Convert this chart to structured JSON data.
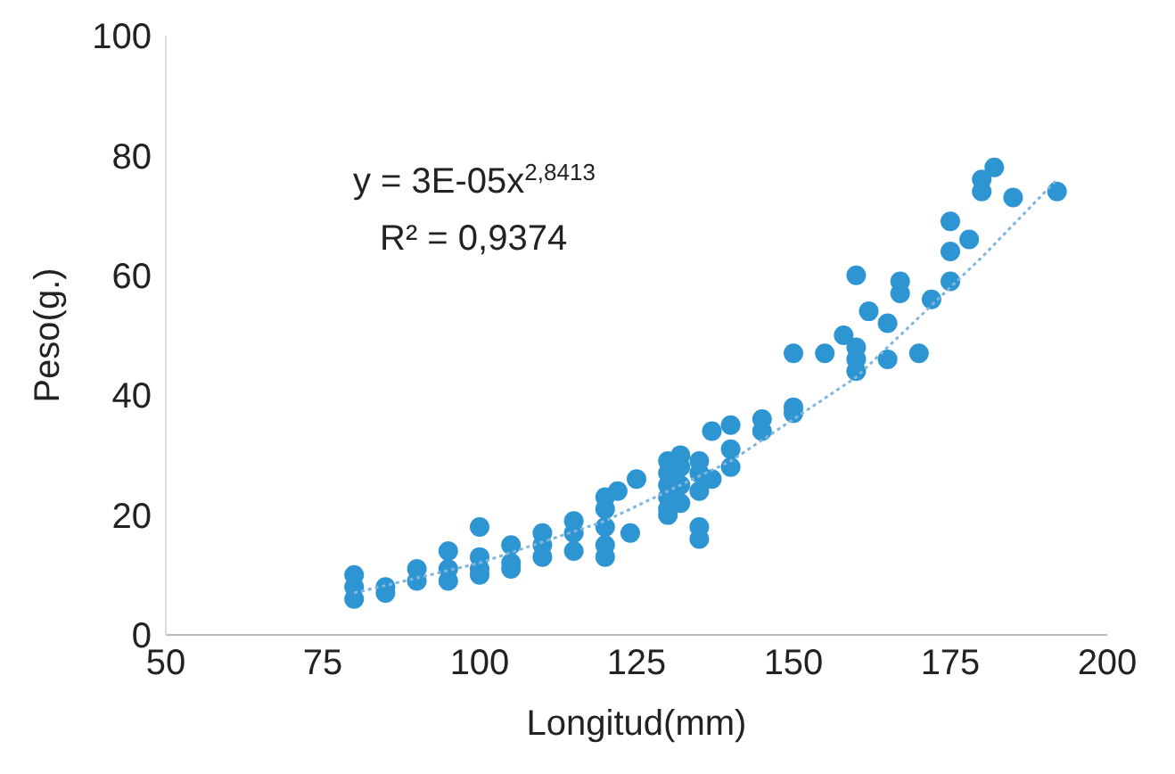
{
  "chart_data": {
    "type": "scatter",
    "xlabel": "Longitud(mm)",
    "ylabel": "Peso(g.)",
    "annotations": [
      "y = 3E-05x$^{2,8413}$",
      "R² = 0,9374"
    ],
    "xlim": [
      50,
      200
    ],
    "xticks": [
      50,
      75,
      100,
      125,
      150,
      175,
      200
    ],
    "ylim": [
      0,
      100
    ],
    "yticks": [
      0,
      20,
      40,
      60,
      80,
      100
    ],
    "grid": false,
    "legend": false,
    "marker": "circle",
    "series": [
      {
        "type": "scatter",
        "color": "#2e95d3",
        "x": [
          80,
          80,
          80,
          85,
          85,
          90,
          90,
          95,
          95,
          95,
          100,
          100,
          100,
          100,
          105,
          105,
          105,
          110,
          110,
          110,
          115,
          115,
          115,
          120,
          120,
          120,
          120,
          120,
          122,
          124,
          125,
          130,
          130,
          130,
          130,
          130,
          130,
          132,
          132,
          132,
          132,
          135,
          135,
          135,
          135,
          135,
          137,
          137,
          140,
          140,
          140,
          145,
          145,
          150,
          150,
          150,
          155,
          158,
          160,
          160,
          160,
          160,
          162,
          165,
          165,
          167,
          167,
          170,
          172,
          175,
          175,
          175,
          178,
          180,
          180,
          182,
          185,
          192
        ],
        "values": [
          10,
          8,
          6,
          8,
          7,
          11,
          9,
          14,
          11,
          9,
          18,
          13,
          11,
          10,
          15,
          12,
          11,
          17,
          15,
          13,
          19,
          17,
          14,
          23,
          21,
          18,
          15,
          13,
          24,
          17,
          26,
          29,
          27,
          25,
          23,
          21,
          20,
          30,
          28,
          25,
          22,
          29,
          27,
          24,
          18,
          16,
          34,
          26,
          35,
          31,
          28,
          36,
          34,
          38,
          37,
          47,
          47,
          50,
          60,
          48,
          46,
          44,
          54,
          52,
          46,
          59,
          57,
          47,
          56,
          69,
          64,
          59,
          66,
          76,
          74,
          78,
          73,
          74
        ]
      },
      {
        "type": "line",
        "color": "#7fb6dc",
        "marker": "none",
        "line_style": "dotted",
        "x": [
          80,
          100,
          120,
          140,
          160,
          180,
          192
        ],
        "values": [
          7,
          12,
          19,
          29,
          43,
          63,
          76
        ]
      }
    ]
  }
}
